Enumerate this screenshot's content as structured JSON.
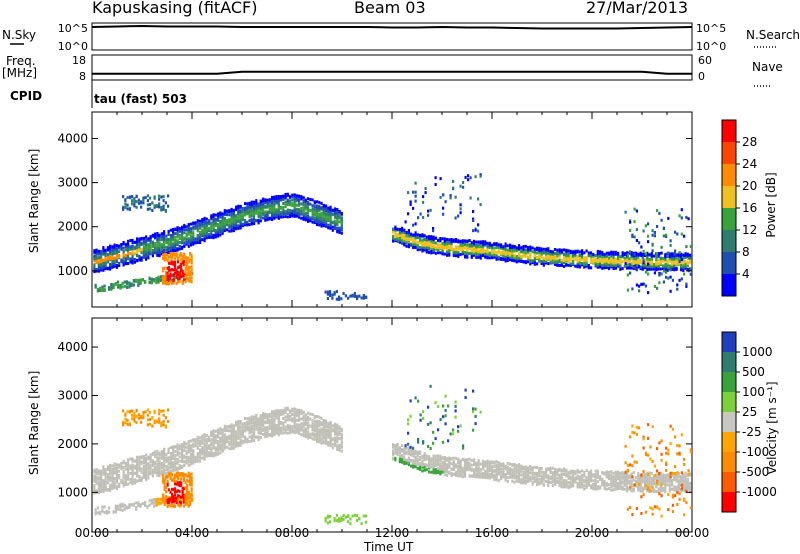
{
  "header": {
    "station": "Kapuskasing (fitACF)",
    "beam": "Beam 03",
    "date": "27/Mar/2013"
  },
  "side_labels": {
    "nsky": "N.Sky",
    "freq": "Freq.",
    "freq_unit": "[MHz]",
    "cpid": "CPID",
    "nsearch": "N.Search",
    "nave": "Nave"
  },
  "cpid_value": "tau (fast) 503",
  "colors": {
    "power_scale": [
      "#0000ff",
      "#1f4fb0",
      "#2e7d6e",
      "#3aa23a",
      "#f0c020",
      "#ff8c00",
      "#ff4500",
      "#ff0000"
    ],
    "velocity_scale": [
      "#1f3fbf",
      "#2e7d6e",
      "#3aa23a",
      "#7bd13b",
      "#c8c8c0",
      "#ffa500",
      "#ff8c00",
      "#ff5a00",
      "#ff0000"
    ],
    "ground_scatter": "#c0c0b8"
  },
  "chart_data": [
    {
      "type": "line",
      "title": "",
      "series": [
        {
          "name": "N.Sky",
          "values_log10": [
            4.6,
            4.7,
            4.8,
            4.7,
            4.7,
            4.7,
            4.6,
            4.6,
            4.6,
            4.6,
            4.6,
            4.6,
            4.5,
            4.5,
            4.6,
            4.5,
            4.5,
            4.4,
            4.3,
            4.3,
            4.3,
            4.3,
            4.4,
            4.5,
            4.6
          ]
        },
        {
          "name": "N.Search"
        }
      ],
      "x": [
        "00:00",
        "01:00",
        "02:00",
        "03:00",
        "04:00",
        "05:00",
        "06:00",
        "07:00",
        "08:00",
        "09:00",
        "10:00",
        "11:00",
        "12:00",
        "13:00",
        "14:00",
        "15:00",
        "16:00",
        "17:00",
        "18:00",
        "19:00",
        "20:00",
        "21:00",
        "22:00",
        "23:00",
        "00:00"
      ],
      "ylabel_left_ticks": [
        "10^5",
        "10^0"
      ],
      "ylabel_right_ticks": [
        "10^5",
        "10^0"
      ]
    },
    {
      "type": "line",
      "series": [
        {
          "name": "Freq. [MHz]",
          "values": [
            10.5,
            10.5,
            10.5,
            10.5,
            10.5,
            10.5,
            11.3,
            11.3,
            11.3,
            11.3,
            11.3,
            11.3,
            11.3,
            11.3,
            11.3,
            11.3,
            11.3,
            11.3,
            11.3,
            11.3,
            11.3,
            11.3,
            11.3,
            10.5,
            10.5
          ]
        },
        {
          "name": "Nave"
        }
      ],
      "left_ticks": [
        18,
        8
      ],
      "right_ticks": [
        60,
        0
      ]
    },
    {
      "type": "heatmap",
      "panel": "power",
      "ylabel": "Slant Range [km]",
      "ylim": [
        180,
        4600
      ],
      "yticks": [
        1000,
        2000,
        3000,
        4000
      ],
      "colorbar_label": "Power [dB]",
      "colorbar_ticks": [
        4,
        8,
        12,
        16,
        20,
        24,
        28
      ],
      "main_band": {
        "x_hours": [
          0,
          1,
          2,
          3,
          4,
          5,
          6,
          7,
          8,
          9,
          10
        ],
        "range_km": [
          1200,
          1350,
          1500,
          1650,
          1850,
          2050,
          2250,
          2400,
          2500,
          2300,
          2100
        ]
      },
      "second_band": {
        "x_hours": [
          12,
          13,
          14,
          15,
          16,
          17,
          18,
          19,
          20,
          21,
          22,
          23,
          24
        ],
        "range_km": [
          1850,
          1650,
          1550,
          1500,
          1450,
          1380,
          1320,
          1280,
          1250,
          1230,
          1210,
          1200,
          1200
        ]
      },
      "hot_spot": {
        "time": "03:20",
        "range_km": 1000,
        "power_db": 30
      }
    },
    {
      "type": "heatmap",
      "panel": "velocity",
      "ylabel": "Slant Range [km]",
      "ylim": [
        180,
        4600
      ],
      "yticks": [
        1000,
        2000,
        3000,
        4000
      ],
      "colorbar_label": "Velocity [m s⁻¹]",
      "colorbar_ticks": [
        1000,
        500,
        100,
        25,
        -25,
        -100,
        -500,
        -1000
      ],
      "xlabel": "Time UT",
      "xticks": [
        "00:00",
        "04:00",
        "08:00",
        "12:00",
        "16:00",
        "20:00",
        "00:00"
      ]
    }
  ]
}
